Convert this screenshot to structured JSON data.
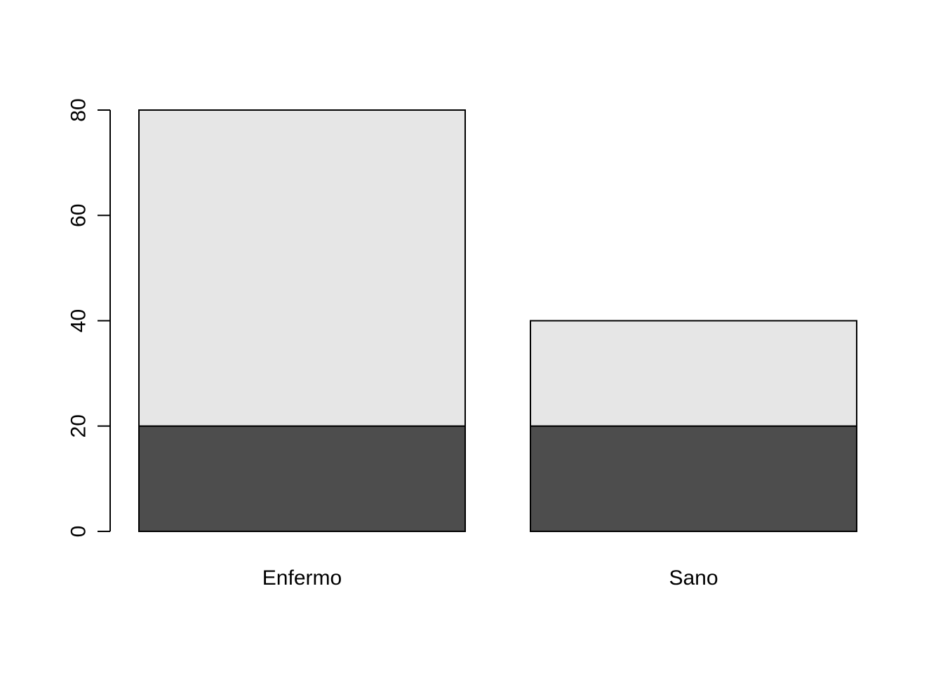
{
  "chart_data": {
    "type": "bar",
    "stacked": true,
    "title": "",
    "xlabel": "",
    "ylabel": "",
    "categories": [
      "Enfermo",
      "Sano"
    ],
    "series": [
      {
        "name": "",
        "values": [
          20,
          20
        ],
        "color": "#4d4d4d"
      },
      {
        "name": "",
        "values": [
          60,
          20
        ],
        "color": "#e6e6e6"
      }
    ],
    "ylim": [
      0,
      80
    ],
    "yticks": [
      0,
      20,
      40,
      60,
      80
    ],
    "grid": false,
    "legend": "none"
  },
  "colors": {
    "background": "#ffffff",
    "stroke": "#000000"
  }
}
